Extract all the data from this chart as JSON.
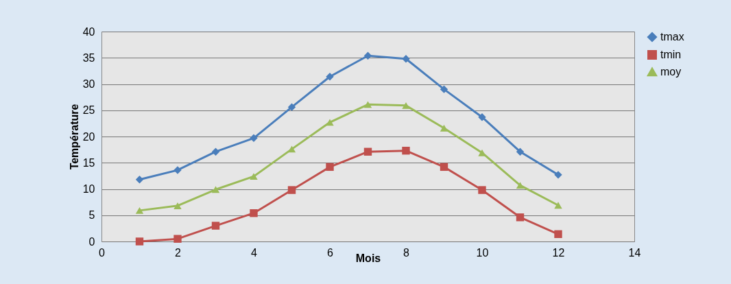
{
  "chart_data": {
    "type": "line",
    "xlabel": "Mois",
    "ylabel": "Température",
    "x": [
      1,
      2,
      3,
      4,
      5,
      6,
      7,
      8,
      9,
      10,
      11,
      12
    ],
    "series": [
      {
        "name": "tmax",
        "color": "#4a7ebb",
        "marker": "diamond",
        "values": [
          11.8,
          13.6,
          17.1,
          19.7,
          25.6,
          31.4,
          35.4,
          34.8,
          29,
          23.7,
          17.1,
          12.7
        ]
      },
      {
        "name": "tmin",
        "color": "#c0504d",
        "marker": "square",
        "values": [
          0,
          0.5,
          3,
          5.4,
          9.8,
          14.2,
          17.1,
          17.3,
          14.2,
          9.8,
          4.6,
          1.4
        ]
      },
      {
        "name": "moy",
        "color": "#9bbb59",
        "marker": "triangle",
        "values": [
          5.9,
          6.8,
          9.9,
          12.4,
          17.6,
          22.7,
          26.1,
          25.9,
          21.6,
          16.9,
          10.7,
          6.9
        ]
      }
    ],
    "xlim": [
      0,
      14
    ],
    "xticks": [
      0,
      2,
      4,
      6,
      8,
      10,
      12,
      14
    ],
    "ylim": [
      0,
      40
    ],
    "yticks": [
      0,
      5,
      10,
      15,
      20,
      25,
      30,
      35,
      40
    ],
    "grid": "y",
    "legend": "right"
  }
}
